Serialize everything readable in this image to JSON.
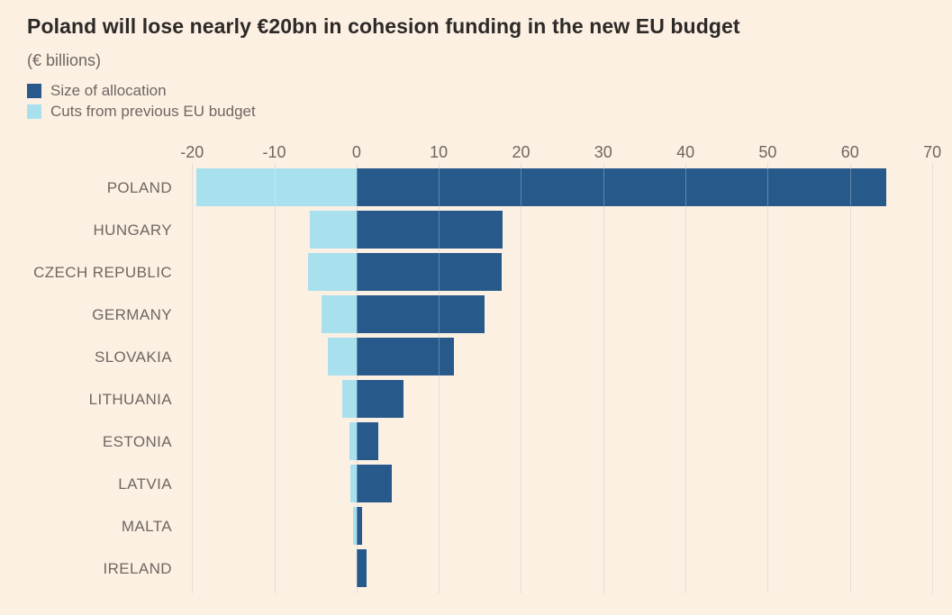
{
  "chart_data": {
    "type": "bar",
    "orientation": "horizontal",
    "title": "Poland will lose nearly €20bn in cohesion funding in the new EU budget",
    "subtitle": "(€ billions)",
    "categories": [
      "POLAND",
      "HUNGARY",
      "CZECH REPUBLIC",
      "GERMANY",
      "SLOVAKIA",
      "LITHUANIA",
      "ESTONIA",
      "LATVIA",
      "MALTA",
      "IRELAND"
    ],
    "series": [
      {
        "name": "Size of allocation",
        "color": "#27598A",
        "values": [
          64.4,
          17.8,
          17.7,
          15.6,
          11.8,
          5.7,
          2.7,
          4.3,
          0.7,
          1.2
        ]
      },
      {
        "name": "Cuts from previous EU budget",
        "color": "#A8E0EE",
        "values": [
          -19.5,
          -5.7,
          -5.9,
          -4.3,
          -3.5,
          -1.7,
          -0.9,
          -0.7,
          -0.4,
          0
        ]
      }
    ],
    "xticks": [
      -20,
      -10,
      0,
      10,
      20,
      30,
      40,
      50,
      60,
      70
    ],
    "xlim": [
      -20.9,
      72.4
    ],
    "grid": "vertical",
    "legend_position": "top-left",
    "colors": {
      "background": "#FCF0E3",
      "title_text": "#2C2927",
      "muted_text": "#6E6761",
      "gridline": "#D9D2CB"
    }
  }
}
